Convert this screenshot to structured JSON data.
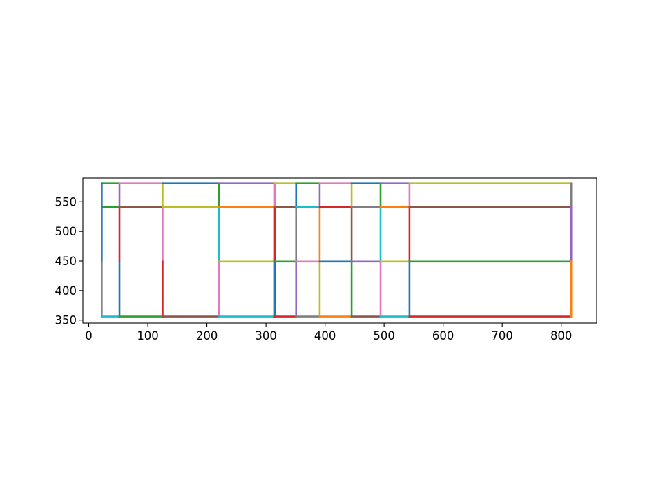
{
  "chart_data": {
    "type": "line",
    "title": "",
    "xlabel": "",
    "ylabel": "",
    "xlim": [
      -10,
      860
    ],
    "ylim": [
      345,
      590
    ],
    "xticks": [
      0,
      100,
      200,
      300,
      400,
      500,
      600,
      700,
      800
    ],
    "yticks": [
      350,
      400,
      450,
      500,
      550
    ],
    "grid": false,
    "legend": "none",
    "colors": [
      "#1f77b4",
      "#ff7f0e",
      "#2ca02c",
      "#d62728",
      "#9467bd",
      "#8c564b",
      "#e377c2",
      "#7f7f7f",
      "#bcbd22",
      "#17becf"
    ],
    "segments": [
      {
        "x": [
          22,
          52
        ],
        "y": [
          581,
          581
        ],
        "color": "#2ca02c"
      },
      {
        "x": [
          22,
          52
        ],
        "y": [
          541,
          541
        ],
        "color": "#2ca02c"
      },
      {
        "x": [
          22,
          22
        ],
        "y": [
          581,
          449
        ],
        "color": "#1f77b4"
      },
      {
        "x": [
          22,
          22
        ],
        "y": [
          449,
          356
        ],
        "color": "#7f7f7f"
      },
      {
        "x": [
          22,
          52
        ],
        "y": [
          356,
          356
        ],
        "color": "#17becf"
      },
      {
        "x": [
          52,
          52
        ],
        "y": [
          581,
          541
        ],
        "color": "#9467bd"
      },
      {
        "x": [
          52,
          52
        ],
        "y": [
          541,
          449
        ],
        "color": "#d62728"
      },
      {
        "x": [
          52,
          52
        ],
        "y": [
          449,
          356
        ],
        "color": "#1f77b4"
      },
      {
        "x": [
          52,
          125
        ],
        "y": [
          581,
          581
        ],
        "color": "#e377c2"
      },
      {
        "x": [
          52,
          125
        ],
        "y": [
          541,
          541
        ],
        "color": "#8c564b"
      },
      {
        "x": [
          52,
          125
        ],
        "y": [
          356,
          356
        ],
        "color": "#2ca02c"
      },
      {
        "x": [
          125,
          125
        ],
        "y": [
          581,
          541
        ],
        "color": "#bcbd22"
      },
      {
        "x": [
          125,
          125
        ],
        "y": [
          541,
          449
        ],
        "color": "#e377c2"
      },
      {
        "x": [
          125,
          125
        ],
        "y": [
          449,
          356
        ],
        "color": "#d62728"
      },
      {
        "x": [
          125,
          220
        ],
        "y": [
          581,
          581
        ],
        "color": "#1f77b4"
      },
      {
        "x": [
          125,
          220
        ],
        "y": [
          541,
          541
        ],
        "color": "#bcbd22"
      },
      {
        "x": [
          125,
          220
        ],
        "y": [
          356,
          356
        ],
        "color": "#8c564b"
      },
      {
        "x": [
          220,
          220
        ],
        "y": [
          581,
          541
        ],
        "color": "#2ca02c"
      },
      {
        "x": [
          220,
          220
        ],
        "y": [
          541,
          449
        ],
        "color": "#17becf"
      },
      {
        "x": [
          220,
          220
        ],
        "y": [
          449,
          356
        ],
        "color": "#e377c2"
      },
      {
        "x": [
          220,
          315
        ],
        "y": [
          581,
          581
        ],
        "color": "#9467bd"
      },
      {
        "x": [
          220,
          315
        ],
        "y": [
          541,
          541
        ],
        "color": "#ff7f0e"
      },
      {
        "x": [
          220,
          315
        ],
        "y": [
          449,
          449
        ],
        "color": "#bcbd22"
      },
      {
        "x": [
          220,
          315
        ],
        "y": [
          356,
          356
        ],
        "color": "#17becf"
      },
      {
        "x": [
          315,
          315
        ],
        "y": [
          581,
          541
        ],
        "color": "#e377c2"
      },
      {
        "x": [
          315,
          315
        ],
        "y": [
          541,
          449
        ],
        "color": "#d62728"
      },
      {
        "x": [
          315,
          315
        ],
        "y": [
          449,
          356
        ],
        "color": "#1f77b4"
      },
      {
        "x": [
          315,
          351
        ],
        "y": [
          581,
          581
        ],
        "color": "#bcbd22"
      },
      {
        "x": [
          315,
          351
        ],
        "y": [
          541,
          541
        ],
        "color": "#8c564b"
      },
      {
        "x": [
          315,
          351
        ],
        "y": [
          449,
          449
        ],
        "color": "#2ca02c"
      },
      {
        "x": [
          315,
          351
        ],
        "y": [
          356,
          356
        ],
        "color": "#d62728"
      },
      {
        "x": [
          351,
          351
        ],
        "y": [
          581,
          541
        ],
        "color": "#1f77b4"
      },
      {
        "x": [
          351,
          351
        ],
        "y": [
          541,
          449
        ],
        "color": "#7f7f7f"
      },
      {
        "x": [
          351,
          351
        ],
        "y": [
          449,
          356
        ],
        "color": "#9467bd"
      },
      {
        "x": [
          351,
          391
        ],
        "y": [
          581,
          581
        ],
        "color": "#2ca02c"
      },
      {
        "x": [
          351,
          391
        ],
        "y": [
          541,
          541
        ],
        "color": "#17becf"
      },
      {
        "x": [
          351,
          391
        ],
        "y": [
          449,
          449
        ],
        "color": "#e377c2"
      },
      {
        "x": [
          351,
          391
        ],
        "y": [
          356,
          356
        ],
        "color": "#7f7f7f"
      },
      {
        "x": [
          391,
          391
        ],
        "y": [
          581,
          541
        ],
        "color": "#9467bd"
      },
      {
        "x": [
          391,
          391
        ],
        "y": [
          541,
          449
        ],
        "color": "#ff7f0e"
      },
      {
        "x": [
          391,
          391
        ],
        "y": [
          449,
          356
        ],
        "color": "#bcbd22"
      },
      {
        "x": [
          391,
          445
        ],
        "y": [
          581,
          581
        ],
        "color": "#e377c2"
      },
      {
        "x": [
          391,
          445
        ],
        "y": [
          541,
          541
        ],
        "color": "#d62728"
      },
      {
        "x": [
          391,
          445
        ],
        "y": [
          449,
          449
        ],
        "color": "#1f77b4"
      },
      {
        "x": [
          391,
          445
        ],
        "y": [
          356,
          356
        ],
        "color": "#ff7f0e"
      },
      {
        "x": [
          445,
          445
        ],
        "y": [
          581,
          541
        ],
        "color": "#bcbd22"
      },
      {
        "x": [
          445,
          445
        ],
        "y": [
          541,
          449
        ],
        "color": "#8c564b"
      },
      {
        "x": [
          445,
          445
        ],
        "y": [
          449,
          356
        ],
        "color": "#2ca02c"
      },
      {
        "x": [
          445,
          494
        ],
        "y": [
          581,
          581
        ],
        "color": "#1f77b4"
      },
      {
        "x": [
          445,
          494
        ],
        "y": [
          541,
          541
        ],
        "color": "#7f7f7f"
      },
      {
        "x": [
          445,
          494
        ],
        "y": [
          449,
          449
        ],
        "color": "#9467bd"
      },
      {
        "x": [
          445,
          494
        ],
        "y": [
          356,
          356
        ],
        "color": "#8c564b"
      },
      {
        "x": [
          494,
          494
        ],
        "y": [
          581,
          541
        ],
        "color": "#2ca02c"
      },
      {
        "x": [
          494,
          494
        ],
        "y": [
          541,
          449
        ],
        "color": "#17becf"
      },
      {
        "x": [
          494,
          494
        ],
        "y": [
          449,
          356
        ],
        "color": "#e377c2"
      },
      {
        "x": [
          494,
          543
        ],
        "y": [
          581,
          581
        ],
        "color": "#9467bd"
      },
      {
        "x": [
          494,
          543
        ],
        "y": [
          541,
          541
        ],
        "color": "#ff7f0e"
      },
      {
        "x": [
          494,
          543
        ],
        "y": [
          449,
          449
        ],
        "color": "#bcbd22"
      },
      {
        "x": [
          494,
          543
        ],
        "y": [
          356,
          356
        ],
        "color": "#17becf"
      },
      {
        "x": [
          543,
          543
        ],
        "y": [
          581,
          541
        ],
        "color": "#e377c2"
      },
      {
        "x": [
          543,
          543
        ],
        "y": [
          541,
          449
        ],
        "color": "#d62728"
      },
      {
        "x": [
          543,
          543
        ],
        "y": [
          449,
          356
        ],
        "color": "#1f77b4"
      },
      {
        "x": [
          543,
          817
        ],
        "y": [
          581,
          581
        ],
        "color": "#bcbd22"
      },
      {
        "x": [
          543,
          817
        ],
        "y": [
          541,
          541
        ],
        "color": "#8c564b"
      },
      {
        "x": [
          543,
          817
        ],
        "y": [
          449,
          449
        ],
        "color": "#2ca02c"
      },
      {
        "x": [
          543,
          817
        ],
        "y": [
          356,
          356
        ],
        "color": "#d62728"
      },
      {
        "x": [
          817,
          817
        ],
        "y": [
          581,
          541
        ],
        "color": "#7f7f7f"
      },
      {
        "x": [
          817,
          817
        ],
        "y": [
          541,
          449
        ],
        "color": "#9467bd"
      },
      {
        "x": [
          817,
          817
        ],
        "y": [
          449,
          356
        ],
        "color": "#ff7f0e"
      }
    ]
  }
}
